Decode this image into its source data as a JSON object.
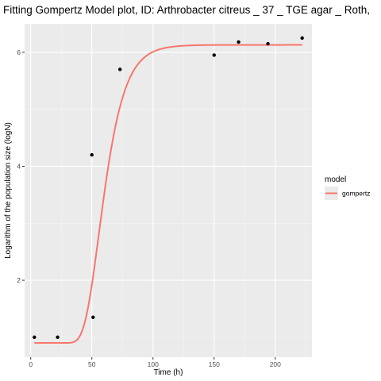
{
  "chart_data": {
    "type": "scatter",
    "title": "Fitting Gompertz Model plot, ID: Arthrobacter citreus _ 37 _ TGE agar _ Roth,",
    "xlabel": "Time (h)",
    "ylabel": "Logarithm of the population size (logN)",
    "xlim": [
      -5,
      230
    ],
    "ylim": [
      0.65,
      6.5
    ],
    "x_ticks": [
      0,
      50,
      100,
      150,
      200
    ],
    "y_ticks": [
      2,
      4,
      6
    ],
    "grid": true,
    "points": {
      "x": [
        3,
        22,
        50,
        51,
        73,
        150,
        170,
        194,
        222
      ],
      "y": [
        1.0,
        1.0,
        4.2,
        1.35,
        5.7,
        5.95,
        6.18,
        6.15,
        6.25
      ]
    },
    "model_curve": {
      "name": "gompertz",
      "color": "#F8766D",
      "x_range": [
        3,
        222
      ],
      "params": {
        "y0": 0.9,
        "ymax": 6.13,
        "mumax": 0.163,
        "lag": 44.0
      }
    },
    "legend": {
      "title": "model",
      "entries": [
        {
          "label": "gompertz",
          "color": "#F8766D"
        }
      ],
      "position": "right"
    }
  }
}
